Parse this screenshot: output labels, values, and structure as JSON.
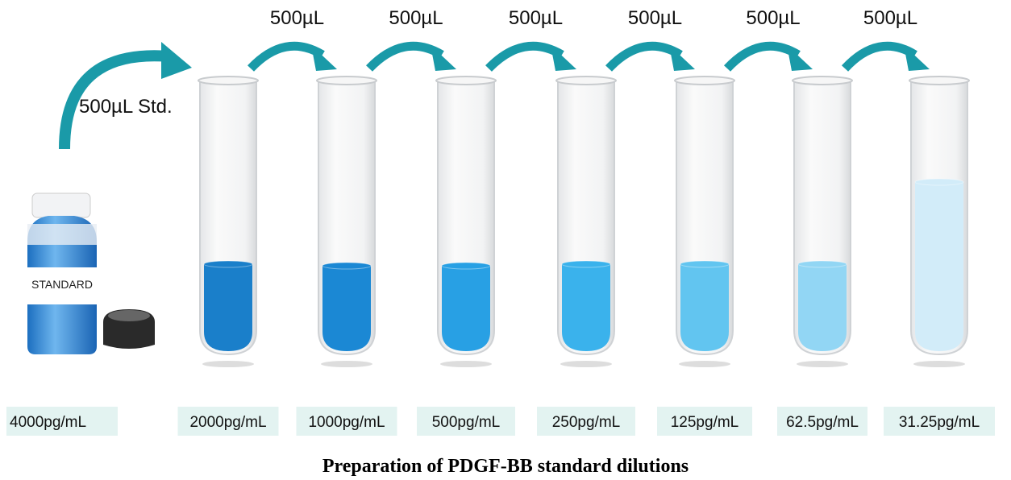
{
  "stock": {
    "label": "STANDARD",
    "concentration": "4000pg/mL",
    "transfer": "500µL Std."
  },
  "transfers": [
    "500µL",
    "500µL",
    "500µL",
    "500µL",
    "500µL",
    "500µL"
  ],
  "tubes": [
    {
      "concentration": "2000pg/mL"
    },
    {
      "concentration": "1000pg/mL"
    },
    {
      "concentration": "500pg/mL"
    },
    {
      "concentration": "250pg/mL"
    },
    {
      "concentration": "125pg/mL"
    },
    {
      "concentration": "62.5pg/mL"
    },
    {
      "concentration": "31.25pg/mL"
    }
  ],
  "caption": "Preparation of PDGF-BB standard dilutions"
}
